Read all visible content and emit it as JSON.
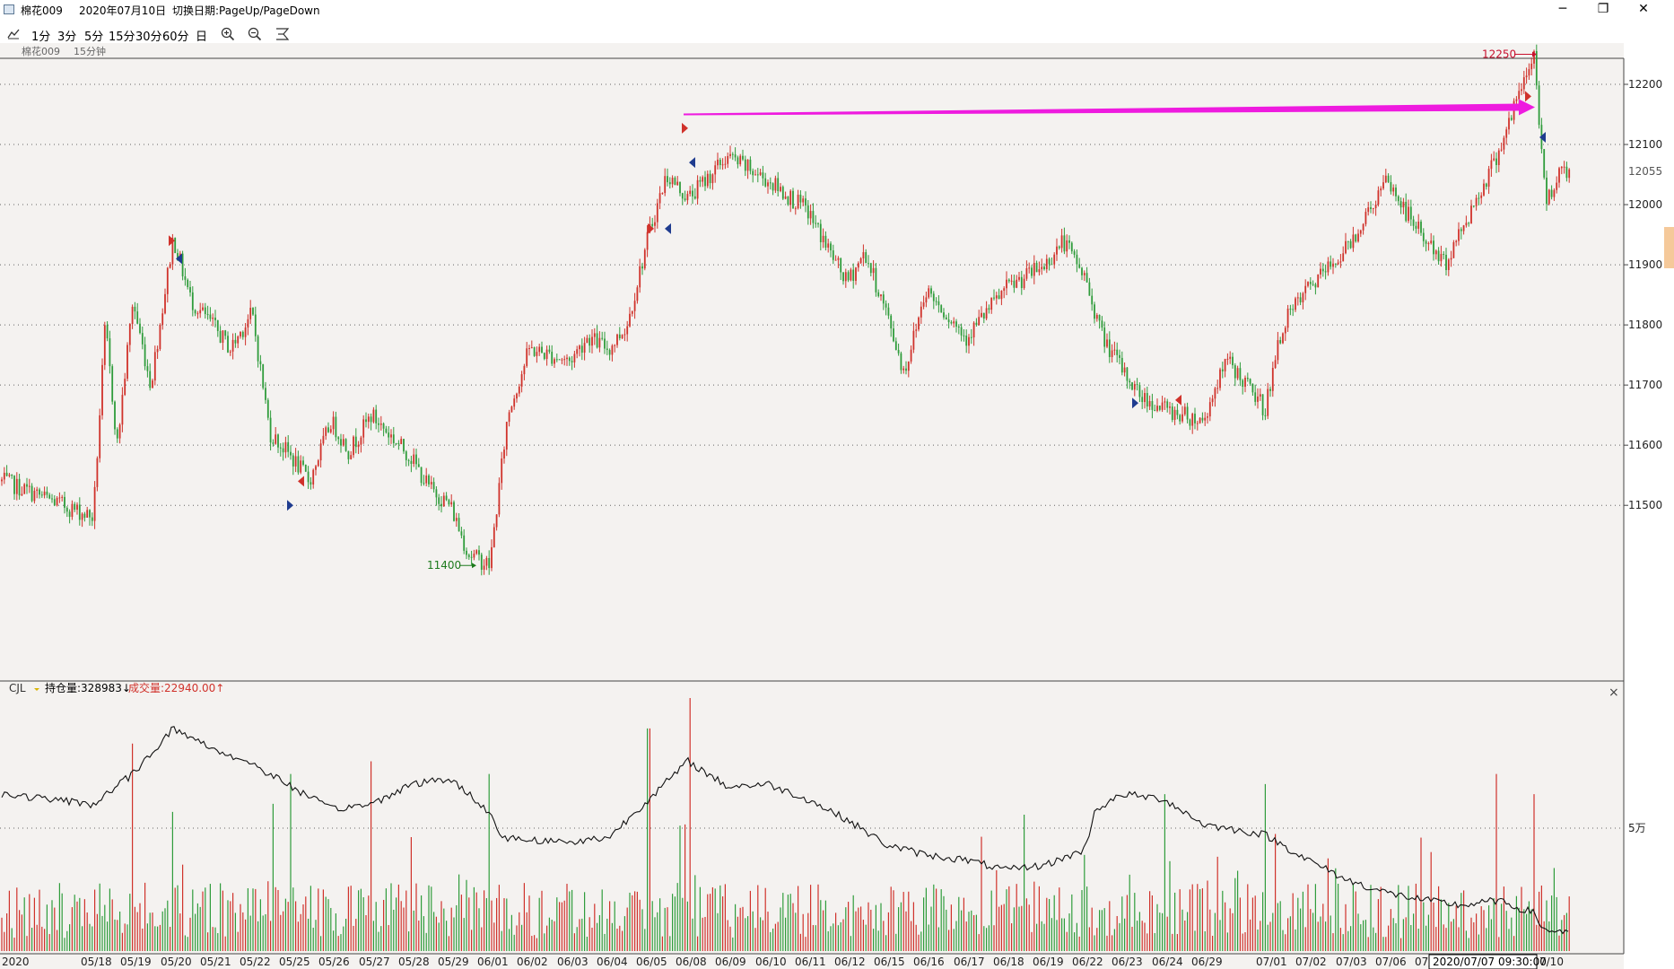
{
  "window": {
    "title_parts": [
      "棉花009",
      "2020年07月10日",
      "切换日期:PageUp/PageDown"
    ],
    "controls": {
      "minimize": "─",
      "restore": "❐",
      "close": "✕"
    }
  },
  "toolbar": {
    "periods": [
      "1分",
      "3分",
      "5分",
      "15分",
      "30分",
      "60分",
      "日"
    ],
    "icons": [
      "line-chart-icon",
      "zoom-in-icon",
      "zoom-out-icon",
      "reset-zoom-icon"
    ]
  },
  "panel": {
    "symbol": "棉花009",
    "period": "15分钟"
  },
  "indicator": {
    "name": "CJL",
    "open_interest_label": "持仓量:328983↓",
    "volume_label": "成交量:22940.00↑",
    "close_symbol": "×"
  },
  "cursor_label": "2020/07/07 09:30:00",
  "colors": {
    "background": "#f4f2f0",
    "up": "#d0322b",
    "down": "#2f9c3b",
    "arrow": "#ee1bdf",
    "price_red": "#c8102e",
    "price_green": "#1d7a1d",
    "marker_blue": "#1f3c8f",
    "axis_text": "#222222",
    "grid": "#666666"
  },
  "chart_data": {
    "type": "candlestick",
    "symbol": "棉花009",
    "period": "15分钟",
    "y_ticks": [
      11500,
      11600,
      11700,
      11800,
      11900,
      12000,
      12100,
      12200
    ],
    "last_price": 12055,
    "ylim": [
      11385,
      12290
    ],
    "annotations": [
      {
        "text": "12250",
        "value": 12250,
        "kind": "high"
      },
      {
        "text": "11400",
        "value": 11400,
        "kind": "low"
      }
    ],
    "arrow": {
      "from": {
        "date": "06/05",
        "value": 12150
      },
      "to": {
        "date": "07/10",
        "value": 12162
      }
    },
    "x_labels": [
      "2020",
      "05/18",
      "05/19",
      "05/20",
      "05/21",
      "05/22",
      "05/25",
      "05/26",
      "05/27",
      "05/28",
      "05/29",
      "06/01",
      "06/02",
      "06/03",
      "06/04",
      "06/05",
      "06/08",
      "06/09",
      "06/10",
      "06/11",
      "06/12",
      "06/15",
      "06/16",
      "06/17",
      "06/18",
      "06/19",
      "06/22",
      "06/23",
      "06/24",
      "06/29",
      "07/01",
      "07/02",
      "07/03",
      "07/06",
      "07/",
      "7/10"
    ],
    "price_path": [
      {
        "date": "05/15",
        "value": 11540
      },
      {
        "date": "05/18",
        "value": 11480
      },
      {
        "date": "05/18",
        "value": 11800
      },
      {
        "date": "05/18",
        "value": 11600
      },
      {
        "date": "05/19",
        "value": 11840
      },
      {
        "date": "05/19",
        "value": 11700
      },
      {
        "date": "05/20",
        "value": 11945
      },
      {
        "date": "05/20",
        "value": 11840
      },
      {
        "date": "05/21",
        "value": 11800
      },
      {
        "date": "05/21",
        "value": 11760
      },
      {
        "date": "05/22",
        "value": 11820
      },
      {
        "date": "05/22",
        "value": 11620
      },
      {
        "date": "05/25",
        "value": 11580
      },
      {
        "date": "05/25",
        "value": 11540
      },
      {
        "date": "05/26",
        "value": 11640
      },
      {
        "date": "05/26",
        "value": 11590
      },
      {
        "date": "05/27",
        "value": 11650
      },
      {
        "date": "05/28",
        "value": 11580
      },
      {
        "date": "05/28",
        "value": 11530
      },
      {
        "date": "05/29",
        "value": 11500
      },
      {
        "date": "05/29",
        "value": 11420
      },
      {
        "date": "06/01",
        "value": 11400
      },
      {
        "date": "06/01",
        "value": 11650
      },
      {
        "date": "06/02",
        "value": 11760
      },
      {
        "date": "06/03",
        "value": 11740
      },
      {
        "date": "06/03",
        "value": 11780
      },
      {
        "date": "06/04",
        "value": 11760
      },
      {
        "date": "06/04",
        "value": 11800
      },
      {
        "date": "06/05",
        "value": 11950
      },
      {
        "date": "06/05",
        "value": 12050
      },
      {
        "date": "06/08",
        "value": 12010
      },
      {
        "date": "06/09",
        "value": 12080
      },
      {
        "date": "06/10",
        "value": 12040
      },
      {
        "date": "06/11",
        "value": 11990
      },
      {
        "date": "06/12",
        "value": 11870
      },
      {
        "date": "06/12",
        "value": 11920
      },
      {
        "date": "06/15",
        "value": 11820
      },
      {
        "date": "06/15",
        "value": 11720
      },
      {
        "date": "06/16",
        "value": 11860
      },
      {
        "date": "06/17",
        "value": 11780
      },
      {
        "date": "06/18",
        "value": 11860
      },
      {
        "date": "06/19",
        "value": 11900
      },
      {
        "date": "06/19",
        "value": 11940
      },
      {
        "date": "06/22",
        "value": 11880
      },
      {
        "date": "06/22",
        "value": 11780
      },
      {
        "date": "06/23",
        "value": 11720
      },
      {
        "date": "06/23",
        "value": 11680
      },
      {
        "date": "06/24",
        "value": 11660
      },
      {
        "date": "06/29",
        "value": 11640
      },
      {
        "date": "06/29",
        "value": 11700
      },
      {
        "date": "06/29",
        "value": 11740
      },
      {
        "date": "07/01",
        "value": 11660
      },
      {
        "date": "07/01",
        "value": 11800
      },
      {
        "date": "07/02",
        "value": 11860
      },
      {
        "date": "07/02",
        "value": 11890
      },
      {
        "date": "07/03",
        "value": 11930
      },
      {
        "date": "07/03",
        "value": 11980
      },
      {
        "date": "07/06",
        "value": 12040
      },
      {
        "date": "07/06",
        "value": 11990
      },
      {
        "date": "07/07",
        "value": 11940
      },
      {
        "date": "07/07",
        "value": 11900
      },
      {
        "date": "07/08",
        "value": 11960
      },
      {
        "date": "07/09",
        "value": 12080
      },
      {
        "date": "07/10",
        "value": 12250
      },
      {
        "date": "07/10",
        "value": 12000
      },
      {
        "date": "07/10",
        "value": 12055
      }
    ],
    "open_interest_path": [
      {
        "date": "05/15",
        "value": 0.62
      },
      {
        "date": "05/18",
        "value": 0.58
      },
      {
        "date": "05/19",
        "value": 0.7
      },
      {
        "date": "05/20",
        "value": 0.88
      },
      {
        "date": "05/21",
        "value": 0.8
      },
      {
        "date": "05/22",
        "value": 0.74
      },
      {
        "date": "05/25",
        "value": 0.65
      },
      {
        "date": "05/26",
        "value": 0.56
      },
      {
        "date": "05/27",
        "value": 0.58
      },
      {
        "date": "05/28",
        "value": 0.66
      },
      {
        "date": "05/29",
        "value": 0.68
      },
      {
        "date": "06/01",
        "value": 0.55
      },
      {
        "date": "06/01",
        "value": 0.45
      },
      {
        "date": "06/02",
        "value": 0.44
      },
      {
        "date": "06/03",
        "value": 0.43
      },
      {
        "date": "06/04",
        "value": 0.45
      },
      {
        "date": "06/05",
        "value": 0.6
      },
      {
        "date": "06/08",
        "value": 0.75
      },
      {
        "date": "06/09",
        "value": 0.65
      },
      {
        "date": "06/10",
        "value": 0.66
      },
      {
        "date": "06/11",
        "value": 0.6
      },
      {
        "date": "06/12",
        "value": 0.52
      },
      {
        "date": "06/15",
        "value": 0.42
      },
      {
        "date": "06/16",
        "value": 0.38
      },
      {
        "date": "06/17",
        "value": 0.36
      },
      {
        "date": "06/18",
        "value": 0.32
      },
      {
        "date": "06/19",
        "value": 0.34
      },
      {
        "date": "06/22",
        "value": 0.4
      },
      {
        "date": "06/22",
        "value": 0.56
      },
      {
        "date": "06/23",
        "value": 0.62
      },
      {
        "date": "06/24",
        "value": 0.6
      },
      {
        "date": "06/29",
        "value": 0.5
      },
      {
        "date": "07/01",
        "value": 0.46
      },
      {
        "date": "07/02",
        "value": 0.36
      },
      {
        "date": "07/03",
        "value": 0.28
      },
      {
        "date": "07/06",
        "value": 0.23
      },
      {
        "date": "07/07",
        "value": 0.2
      },
      {
        "date": "07/08",
        "value": 0.18
      },
      {
        "date": "07/09",
        "value": 0.2
      },
      {
        "date": "07/10",
        "value": 0.15
      },
      {
        "date": "07/10",
        "value": 0.08
      }
    ],
    "volume_scale_label": "5万",
    "volume_spikes": [
      {
        "date": "05/19",
        "value": 0.82
      },
      {
        "date": "05/20",
        "value": 0.55
      },
      {
        "date": "05/25",
        "value": 0.7
      },
      {
        "date": "05/27",
        "value": 0.75
      },
      {
        "date": "06/01",
        "value": 0.7
      },
      {
        "date": "06/05",
        "value": 0.88
      },
      {
        "date": "06/08",
        "value": 1.0
      },
      {
        "date": "06/22",
        "value": 0.38
      },
      {
        "date": "06/24",
        "value": 0.62
      },
      {
        "date": "07/01",
        "value": 0.66
      },
      {
        "date": "07/09",
        "value": 0.7
      },
      {
        "date": "07/10",
        "value": 0.62
      }
    ]
  }
}
